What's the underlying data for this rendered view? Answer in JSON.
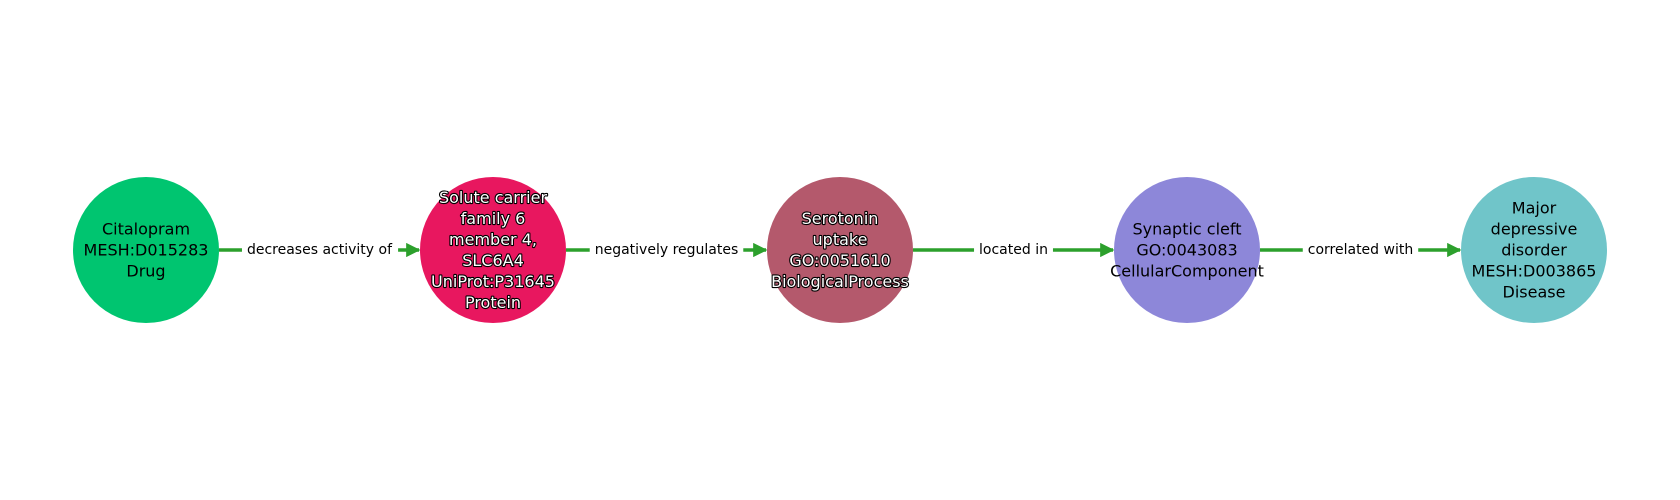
{
  "graph": {
    "nodes": [
      {
        "id": "citalopram",
        "lines": [
          "Citalopram",
          "MESH:D015283",
          "Drug"
        ],
        "color": "#00c570",
        "text_style": "plain"
      },
      {
        "id": "slc6a4",
        "lines": [
          "Solute carrier",
          "family 6",
          "member 4,",
          "SLC6A4",
          "UniProt:P31645",
          "Protein"
        ],
        "color": "#e8175f",
        "text_style": "outlined"
      },
      {
        "id": "serotonin-uptake",
        "lines": [
          "Serotonin",
          "uptake",
          "GO:0051610",
          "BiologicalProcess"
        ],
        "color": "#b4596c",
        "text_style": "outlined"
      },
      {
        "id": "synaptic-cleft",
        "lines": [
          "Synaptic cleft",
          "GO:0043083",
          "CellularComponent"
        ],
        "color": "#8d87d9",
        "text_style": "plain"
      },
      {
        "id": "mdd",
        "lines": [
          "Major",
          "depressive",
          "disorder",
          "MESH:D003865",
          "Disease"
        ],
        "color": "#70c5c9",
        "text_style": "plain"
      }
    ],
    "edges": [
      {
        "source": "citalopram",
        "target": "slc6a4",
        "label": "decreases activity of"
      },
      {
        "source": "slc6a4",
        "target": "serotonin-uptake",
        "label": "negatively regulates"
      },
      {
        "source": "serotonin-uptake",
        "target": "synaptic-cleft",
        "label": "located in"
      },
      {
        "source": "synaptic-cleft",
        "target": "mdd",
        "label": "correlated with"
      }
    ],
    "edge_color": "#2ca02c"
  }
}
